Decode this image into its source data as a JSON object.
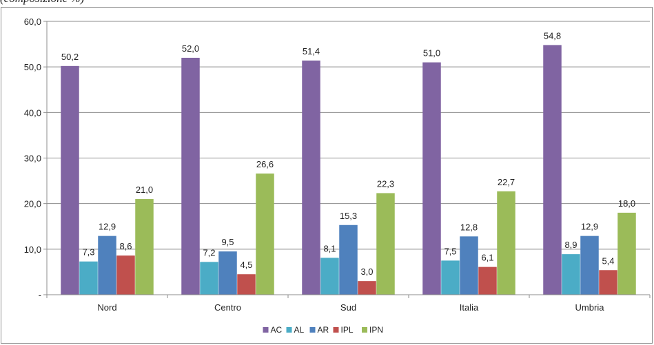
{
  "caption": "(composizione %)",
  "chart_data": {
    "type": "bar",
    "categories": [
      "Nord",
      "Centro",
      "Sud",
      "Italia",
      "Umbria"
    ],
    "series": [
      {
        "name": "AC",
        "color": "#8064a2",
        "values": [
          50.2,
          52.0,
          51.4,
          51.0,
          54.8
        ],
        "labels": [
          "50,2",
          "52,0",
          "51,4",
          "51,0",
          "54,8"
        ]
      },
      {
        "name": "AL",
        "color": "#4bacc6",
        "values": [
          7.3,
          7.2,
          8.1,
          7.5,
          8.9
        ],
        "labels": [
          "7,3",
          "7,2",
          "8,1",
          "7,5",
          "8,9"
        ]
      },
      {
        "name": "AR",
        "color": "#4f81bd",
        "values": [
          12.9,
          9.5,
          15.3,
          12.8,
          12.9
        ],
        "labels": [
          "12,9",
          "9,5",
          "15,3",
          "12,8",
          "12,9"
        ]
      },
      {
        "name": "IPL",
        "color": "#c0504d",
        "values": [
          8.6,
          4.5,
          3.0,
          6.1,
          5.4
        ],
        "labels": [
          "8,6",
          "4,5",
          "3,0",
          "6,1",
          "5,4"
        ]
      },
      {
        "name": "IPN",
        "color": "#9bbb59",
        "values": [
          21.0,
          26.6,
          22.3,
          22.7,
          18.0
        ],
        "labels": [
          "21,0",
          "26,6",
          "22,3",
          "22,7",
          "18,0"
        ]
      }
    ],
    "ylim": [
      0,
      60
    ],
    "yticks": [
      0,
      10,
      20,
      30,
      40,
      50,
      60
    ],
    "ytick_labels": [
      "-",
      "10,0",
      "20,0",
      "30,0",
      "40,0",
      "50,0",
      "60,0"
    ],
    "grid": true,
    "legend_position": "bottom"
  }
}
